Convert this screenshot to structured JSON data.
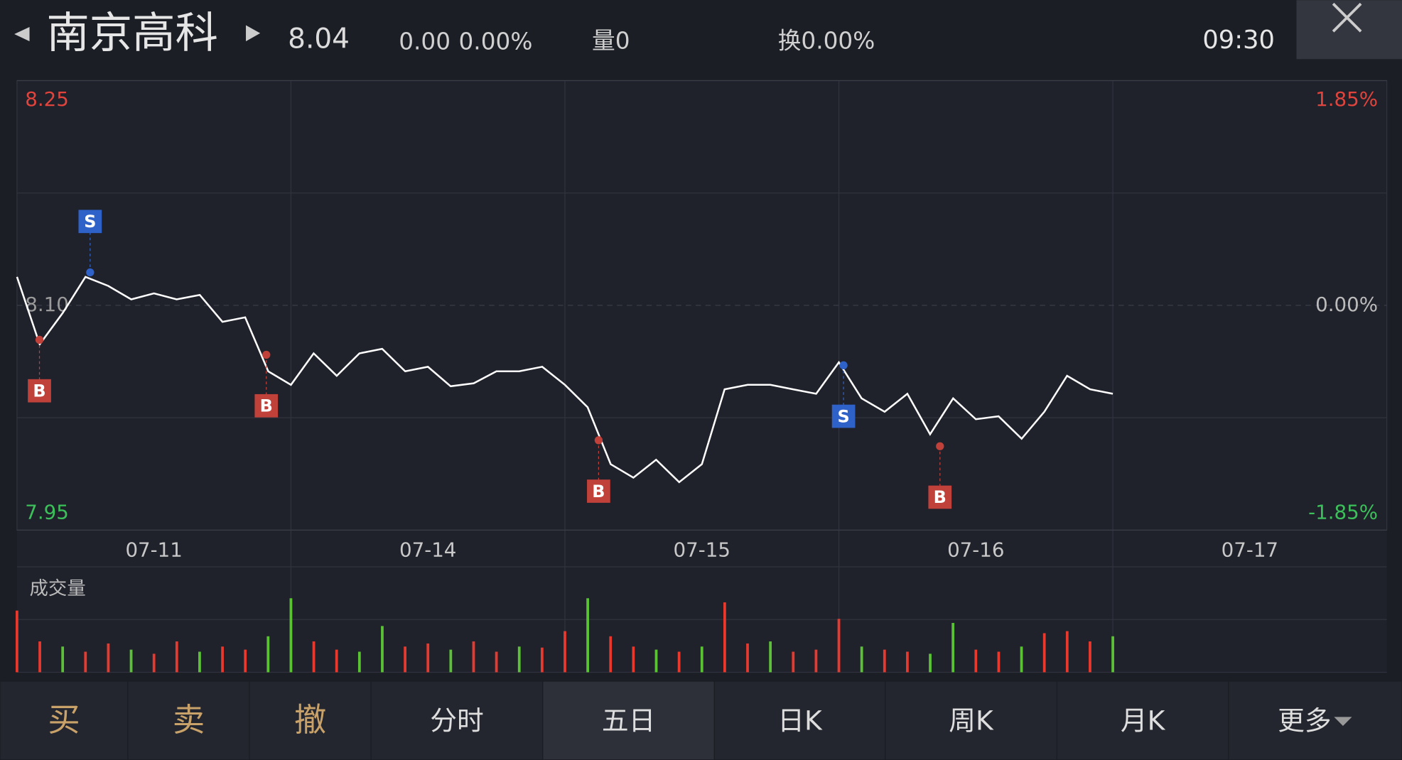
{
  "header": {
    "name": "南京高科",
    "price": "8.04",
    "change": "0.00",
    "change_pct": "0.00%",
    "volume": "量0",
    "turnover": "换0.00%",
    "time": "09:30"
  },
  "chart_data": [
    {
      "type": "line",
      "color": "#ffffff",
      "xlim": [
        0,
        5
      ],
      "xticks": [
        {
          "value": 0.5,
          "label": "07-11"
        },
        {
          "value": 1.5,
          "label": "07-14"
        },
        {
          "value": 2.5,
          "label": "07-15"
        },
        {
          "value": 3.5,
          "label": "07-16"
        },
        {
          "value": 4.5,
          "label": "07-17"
        }
      ],
      "ylim": [
        7.95,
        8.25
      ],
      "yticks": [
        {
          "value": 8.25,
          "label": "8.25"
        },
        {
          "value": 8.1,
          "label": "8.10"
        },
        {
          "value": 7.95,
          "label": "7.95"
        }
      ],
      "y2lim": [
        -1.85,
        1.85
      ],
      "y2ticks": [
        {
          "value": 1.85,
          "label": "1.85%"
        },
        {
          "value": 0,
          "label": "0.00%"
        },
        {
          "value": -1.85,
          "label": "-1.85%"
        }
      ],
      "x": [
        0,
        0.083,
        0.167,
        0.25,
        0.333,
        0.417,
        0.5,
        0.583,
        0.667,
        0.75,
        0.833,
        0.917,
        1,
        1.083,
        1.167,
        1.25,
        1.333,
        1.417,
        1.5,
        1.583,
        1.667,
        1.75,
        1.833,
        1.917,
        2,
        2.083,
        2.167,
        2.25,
        2.333,
        2.417,
        2.5,
        2.583,
        2.667,
        2.75,
        2.833,
        2.917,
        3,
        3.083,
        3.167,
        3.25,
        3.333,
        3.417,
        3.5,
        3.583,
        3.667,
        3.75,
        3.833,
        3.917,
        4
      ],
      "values": [
        8.119,
        8.074,
        8.095,
        8.119,
        8.113,
        8.104,
        8.108,
        8.104,
        8.107,
        8.089,
        8.092,
        8.056,
        8.047,
        8.068,
        8.053,
        8.068,
        8.071,
        8.056,
        8.059,
        8.046,
        8.048,
        8.056,
        8.056,
        8.059,
        8.047,
        8.032,
        7.994,
        7.985,
        7.997,
        7.982,
        7.994,
        8.044,
        8.047,
        8.047,
        8.044,
        8.041,
        8.062,
        8.038,
        8.029,
        8.041,
        8.014,
        8.038,
        8.024,
        8.026,
        8.011,
        8.029,
        8.053,
        8.044,
        8.041
      ],
      "trades": [
        {
          "label": "B",
          "x": 0.082,
          "price": 8.077,
          "color": "#c0403a"
        },
        {
          "label": "S",
          "x": 0.267,
          "price": 8.122,
          "color": "#2f62c8"
        },
        {
          "label": "B",
          "x": 0.91,
          "price": 8.067,
          "color": "#c0403a"
        },
        {
          "label": "B",
          "x": 2.123,
          "price": 8.01,
          "color": "#c0403a"
        },
        {
          "label": "S",
          "x": 3.017,
          "price": 8.06,
          "color": "#2f62c8"
        },
        {
          "label": "B",
          "x": 3.369,
          "price": 8.006,
          "color": "#c0403a"
        }
      ]
    },
    {
      "type": "bar",
      "title": "成交量",
      "xlim": [
        0,
        5
      ],
      "ylim": [
        0,
        100
      ],
      "values": [
        60,
        30,
        25,
        20,
        28,
        22,
        18,
        30,
        20,
        25,
        22,
        35,
        72,
        30,
        22,
        20,
        45,
        25,
        28,
        22,
        30,
        20,
        25,
        24,
        40,
        72,
        35,
        25,
        22,
        20,
        25,
        68,
        28,
        30,
        20,
        22,
        52,
        25,
        22,
        20,
        18,
        48,
        22,
        20,
        25,
        38,
        40,
        30,
        35
      ],
      "colors": [
        "#e8392e",
        "#e8392e",
        "#5bc236",
        "#e8392e",
        "#e8392e",
        "#5bc236",
        "#e8392e",
        "#e8392e",
        "#5bc236",
        "#e8392e",
        "#e8392e",
        "#5bc236",
        "#5bc236",
        "#e8392e",
        "#e8392e",
        "#5bc236",
        "#5bc236",
        "#e8392e",
        "#e8392e",
        "#5bc236",
        "#e8392e",
        "#e8392e",
        "#5bc236",
        "#e8392e",
        "#e8392e",
        "#5bc236",
        "#e8392e",
        "#e8392e",
        "#5bc236",
        "#e8392e",
        "#5bc236",
        "#e8392e",
        "#e8392e",
        "#5bc236",
        "#e8392e",
        "#e8392e",
        "#e8392e",
        "#5bc236",
        "#e8392e",
        "#e8392e",
        "#5bc236",
        "#5bc236",
        "#e8392e",
        "#e8392e",
        "#5bc236",
        "#e8392e",
        "#e8392e",
        "#e8392e",
        "#5bc236"
      ]
    }
  ],
  "toolbar": [
    "买",
    "卖",
    "撤",
    "分时",
    "五日",
    "日K",
    "周K",
    "月K",
    "更多"
  ]
}
